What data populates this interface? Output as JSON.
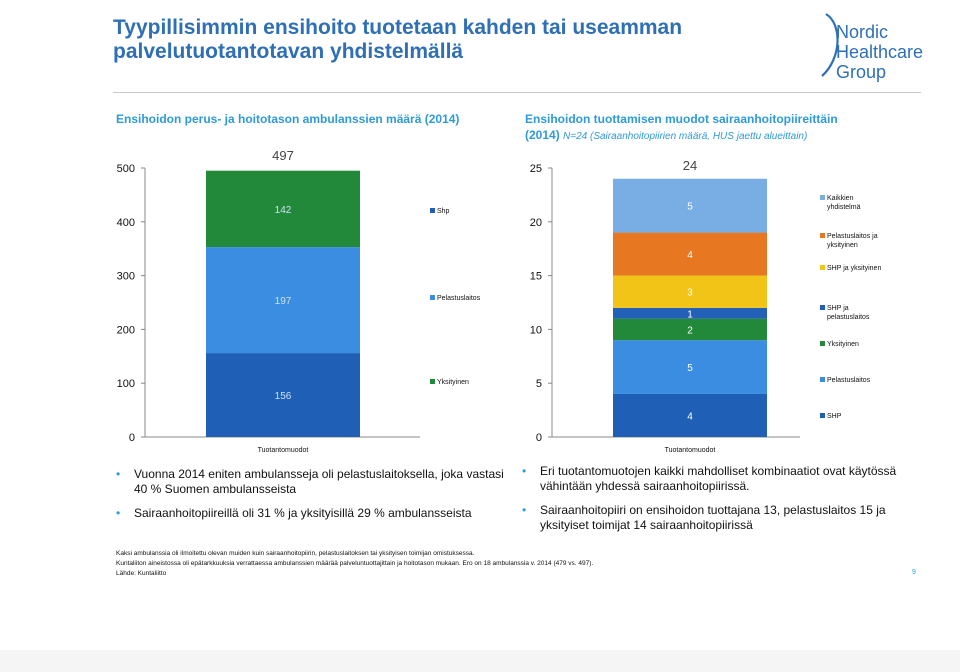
{
  "title_lines": [
    "Tyypillisimmin ensihoito tuotetaan kahden tai useamman",
    "palvelutuotantotavan yhdistelmällä"
  ],
  "logo": {
    "lines": [
      "Nordic",
      "Healthcare",
      "Group"
    ],
    "color": "#2e6fb6"
  },
  "left_chart_title": "Ensihoidon perus- ja hoitotason ambulanssien määrä (2014)",
  "right_chart_title": {
    "main": "Ensihoidon tuottamisen muodot sairaanhoitopiireittäin",
    "year": "(2014)",
    "note": "N=24 (Sairaanhoitopiirien määrä, HUS jaettu alueittain)"
  },
  "chart_data": [
    {
      "type": "bar",
      "stacked": true,
      "categories": [
        "Tuotantomuodot"
      ],
      "series": [
        {
          "name": "Shp",
          "values": [
            156
          ],
          "color": "#1f5fb5"
        },
        {
          "name": "Pelastuslaitos",
          "values": [
            197
          ],
          "color": "#3a8de0"
        },
        {
          "name": "Yksityinen",
          "values": [
            142
          ],
          "color": "#23893a"
        }
      ],
      "total_label": "497",
      "ylim": [
        0,
        500
      ],
      "yticks": [
        0,
        100,
        200,
        300,
        400,
        500
      ],
      "grid": false,
      "legend": "right"
    },
    {
      "type": "bar",
      "stacked": true,
      "categories": [
        "Tuotantomuodot"
      ],
      "series": [
        {
          "name": "SHP",
          "values": [
            4
          ],
          "color": "#1f5fb5"
        },
        {
          "name": "Pelastuslaitos",
          "values": [
            5
          ],
          "color": "#3a8de0"
        },
        {
          "name": "Yksityinen",
          "values": [
            2
          ],
          "color": "#23893a"
        },
        {
          "name": "SHP ja pelastuslaitos",
          "values": [
            1
          ],
          "color": "#2360b8"
        },
        {
          "name": "SHP ja yksityinen",
          "values": [
            3
          ],
          "color": "#f2c418"
        },
        {
          "name": "Pelastuslaitos ja yksityinen",
          "values": [
            4
          ],
          "color": "#e87722"
        },
        {
          "name": "Kaikkien yhdistelmä",
          "values": [
            5
          ],
          "color": "#79aee4"
        }
      ],
      "total_label": "24",
      "ylim": [
        0,
        25
      ],
      "yticks": [
        0,
        5,
        10,
        15,
        20,
        25
      ],
      "grid": false,
      "legend": "right"
    }
  ],
  "left_bullets": [
    "Vuonna 2014 eniten ambulansseja oli pelastuslaitoksella, joka vastasi 40 % Suomen ambulansseista",
    "Sairaanhoitopiireillä oli 31 % ja yksityisillä 29 % ambulansseista"
  ],
  "right_bullets": [
    "Eri tuotantomuotojen kaikki mahdolliset kombinaatiot ovat käytössä vähintään yhdessä sairaanhoitopiirissä.",
    "Sairaanhoitopiiri on ensihoidon tuottajana 13, pelastuslaitos 15 ja yksityiset toimijat 14 sairaanhoitopiirissä"
  ],
  "footnotes": [
    "Kaksi ambulanssia oli ilmoitettu olevan muiden kuin sairaanhoitopiirin, pelastuslaitoksen tai yksityisen toimijan omistuksessa.",
    "Kuntaliiton aineistossa oli epätarkkuuksia verrattaessa ambulanssien määrää palveluntuottajittain ja hoitotason mukaan. Ero on 18 ambulanssia v. 2014 (479 vs. 497).",
    "Lähde: Kuntaliitto"
  ],
  "page_number": "9",
  "bullet_char": "•"
}
